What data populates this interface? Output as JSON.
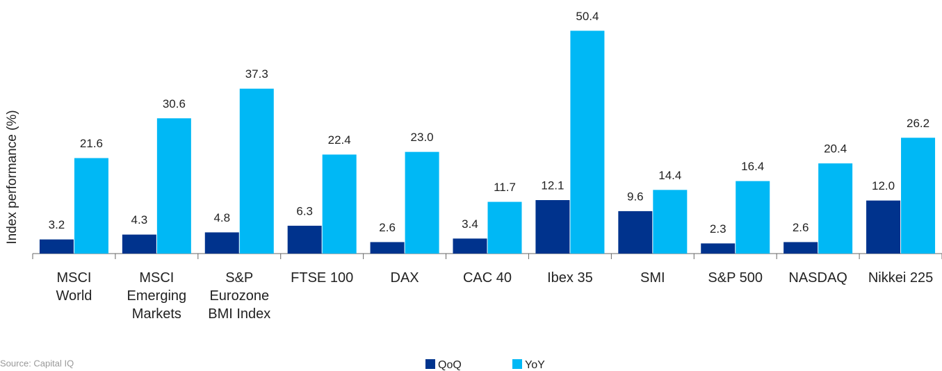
{
  "chart_data": {
    "type": "bar",
    "y_label": "Index performance  (%)",
    "source": "Source: Capital IQ",
    "categories": [
      "MSCI\nWorld",
      "MSCI\nEmerging\nMarkets",
      "S&P\nEurozone\nBMI Index",
      "FTSE 100",
      "DAX",
      "CAC 40",
      "Ibex 35",
      "SMI",
      "S&P 500",
      "NASDAQ",
      "Nikkei 225"
    ],
    "series": [
      {
        "name": "QoQ",
        "color": "#00338d",
        "values": [
          3.2,
          4.3,
          4.8,
          6.3,
          2.6,
          3.4,
          12.1,
          9.6,
          2.3,
          2.6,
          12.0
        ],
        "value_labels": [
          "3.2",
          "4.3",
          "4.8",
          "6.3",
          "2.6",
          "3.4",
          "12.1",
          "9.6",
          "2.3",
          "2.6",
          "12.0"
        ]
      },
      {
        "name": "YoY",
        "color": "#00b8f5",
        "values": [
          21.6,
          30.6,
          37.3,
          22.4,
          23.0,
          11.7,
          50.4,
          14.4,
          16.4,
          20.4,
          26.2
        ],
        "value_labels": [
          "21.6",
          "30.6",
          "37.3",
          "22.4",
          "23.0",
          "11.7",
          "50.4",
          "14.4",
          "16.4",
          "20.4",
          "26.2"
        ]
      }
    ],
    "ylim": [
      0,
      55
    ]
  }
}
